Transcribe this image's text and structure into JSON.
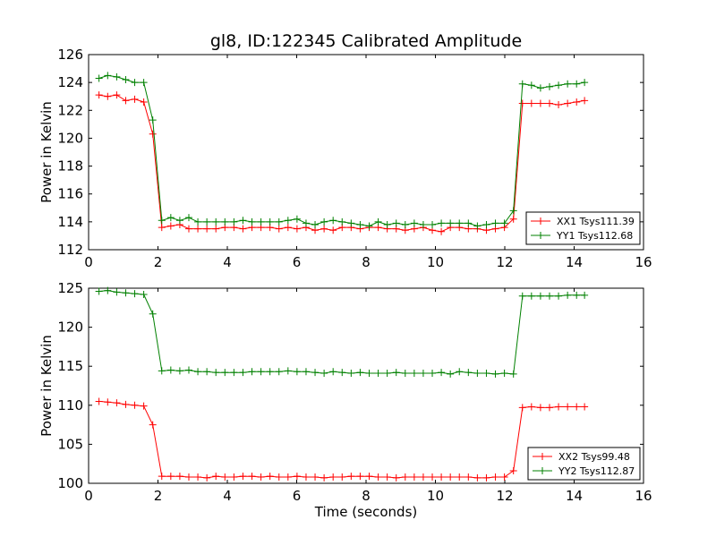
{
  "chart_data": [
    {
      "type": "line",
      "title": "gl8, ID:122345 Calibrated Amplitude",
      "xlabel": "",
      "ylabel": "Power in Kelvin",
      "xlim": [
        0,
        16
      ],
      "ylim": [
        112,
        126
      ],
      "xticks": [
        0,
        2,
        4,
        6,
        8,
        10,
        12,
        14,
        16
      ],
      "yticks": [
        112,
        114,
        116,
        118,
        120,
        122,
        124,
        126
      ],
      "grid": false,
      "legend_position": "lower-right",
      "x": [
        0.3,
        0.55,
        0.81,
        1.07,
        1.33,
        1.59,
        1.85,
        2.11,
        2.37,
        2.63,
        2.89,
        3.15,
        3.41,
        3.67,
        3.93,
        4.19,
        4.45,
        4.71,
        4.97,
        5.23,
        5.49,
        5.75,
        6.01,
        6.27,
        6.53,
        6.79,
        7.05,
        7.31,
        7.57,
        7.83,
        8.09,
        8.35,
        8.61,
        8.87,
        9.13,
        9.39,
        9.65,
        9.91,
        10.17,
        10.43,
        10.69,
        10.95,
        11.21,
        11.47,
        11.73,
        11.99,
        12.25,
        12.51,
        12.77,
        13.03,
        13.29,
        13.55,
        13.81,
        14.07,
        14.3
      ],
      "series": [
        {
          "name": "XX1 Tsys111.39",
          "color": "#ff0000",
          "values": [
            123.1,
            123.0,
            123.1,
            122.7,
            122.8,
            122.6,
            120.3,
            113.6,
            113.7,
            113.8,
            113.5,
            113.5,
            113.5,
            113.5,
            113.6,
            113.6,
            113.5,
            113.6,
            113.6,
            113.6,
            113.5,
            113.6,
            113.5,
            113.6,
            113.4,
            113.5,
            113.4,
            113.6,
            113.6,
            113.5,
            113.6,
            113.6,
            113.5,
            113.5,
            113.4,
            113.5,
            113.6,
            113.4,
            113.3,
            113.6,
            113.6,
            113.5,
            113.5,
            113.4,
            113.5,
            113.6,
            114.2,
            122.5,
            122.5,
            122.5,
            122.5,
            122.4,
            122.5,
            122.6,
            122.7
          ]
        },
        {
          "name": "YY1 Tsys112.68",
          "color": "#008000",
          "values": [
            124.3,
            124.5,
            124.4,
            124.2,
            124.0,
            124.0,
            121.3,
            114.1,
            114.3,
            114.1,
            114.3,
            114.0,
            114.0,
            114.0,
            114.0,
            114.0,
            114.1,
            114.0,
            114.0,
            114.0,
            114.0,
            114.1,
            114.2,
            113.9,
            113.8,
            114.0,
            114.1,
            114.0,
            113.9,
            113.8,
            113.7,
            114.0,
            113.8,
            113.9,
            113.8,
            113.9,
            113.8,
            113.8,
            113.9,
            113.9,
            113.9,
            113.9,
            113.7,
            113.8,
            113.9,
            113.9,
            114.8,
            123.9,
            123.8,
            123.6,
            123.7,
            123.8,
            123.9,
            123.9,
            124.0
          ]
        }
      ]
    },
    {
      "type": "line",
      "title": "",
      "xlabel": "Time (seconds)",
      "ylabel": "Power in Kelvin",
      "xlim": [
        0,
        16
      ],
      "ylim": [
        100,
        125
      ],
      "xticks": [
        0,
        2,
        4,
        6,
        8,
        10,
        12,
        14,
        16
      ],
      "yticks": [
        100,
        105,
        110,
        115,
        120,
        125
      ],
      "grid": false,
      "legend_position": "lower-right",
      "x": [
        0.3,
        0.55,
        0.81,
        1.07,
        1.33,
        1.59,
        1.85,
        2.11,
        2.37,
        2.63,
        2.89,
        3.15,
        3.41,
        3.67,
        3.93,
        4.19,
        4.45,
        4.71,
        4.97,
        5.23,
        5.49,
        5.75,
        6.01,
        6.27,
        6.53,
        6.79,
        7.05,
        7.31,
        7.57,
        7.83,
        8.09,
        8.35,
        8.61,
        8.87,
        9.13,
        9.39,
        9.65,
        9.91,
        10.17,
        10.43,
        10.69,
        10.95,
        11.21,
        11.47,
        11.73,
        11.99,
        12.25,
        12.51,
        12.77,
        13.03,
        13.29,
        13.55,
        13.81,
        14.07,
        14.3
      ],
      "series": [
        {
          "name": "XX2 Tsys99.48",
          "color": "#ff0000",
          "values": [
            110.5,
            110.4,
            110.3,
            110.1,
            110.0,
            109.9,
            107.5,
            100.9,
            100.9,
            100.9,
            100.8,
            100.8,
            100.7,
            100.9,
            100.8,
            100.8,
            100.9,
            100.9,
            100.8,
            100.9,
            100.8,
            100.8,
            100.9,
            100.8,
            100.8,
            100.7,
            100.8,
            100.8,
            100.9,
            100.9,
            100.9,
            100.8,
            100.8,
            100.7,
            100.8,
            100.8,
            100.8,
            100.8,
            100.8,
            100.8,
            100.8,
            100.8,
            100.7,
            100.7,
            100.8,
            100.8,
            101.6,
            109.7,
            109.8,
            109.7,
            109.7,
            109.8,
            109.8,
            109.8,
            109.8
          ]
        },
        {
          "name": "YY2 Tsys112.87",
          "color": "#008000",
          "values": [
            124.6,
            124.7,
            124.5,
            124.4,
            124.3,
            124.2,
            121.7,
            114.4,
            114.5,
            114.4,
            114.5,
            114.3,
            114.3,
            114.2,
            114.2,
            114.2,
            114.2,
            114.3,
            114.3,
            114.3,
            114.3,
            114.4,
            114.3,
            114.3,
            114.2,
            114.1,
            114.3,
            114.2,
            114.1,
            114.2,
            114.1,
            114.1,
            114.1,
            114.2,
            114.1,
            114.1,
            114.1,
            114.1,
            114.2,
            114.0,
            114.3,
            114.2,
            114.1,
            114.1,
            114.0,
            114.1,
            114.0,
            124.0,
            124.0,
            124.0,
            124.0,
            124.0,
            124.1,
            124.1,
            124.1
          ]
        }
      ]
    }
  ]
}
